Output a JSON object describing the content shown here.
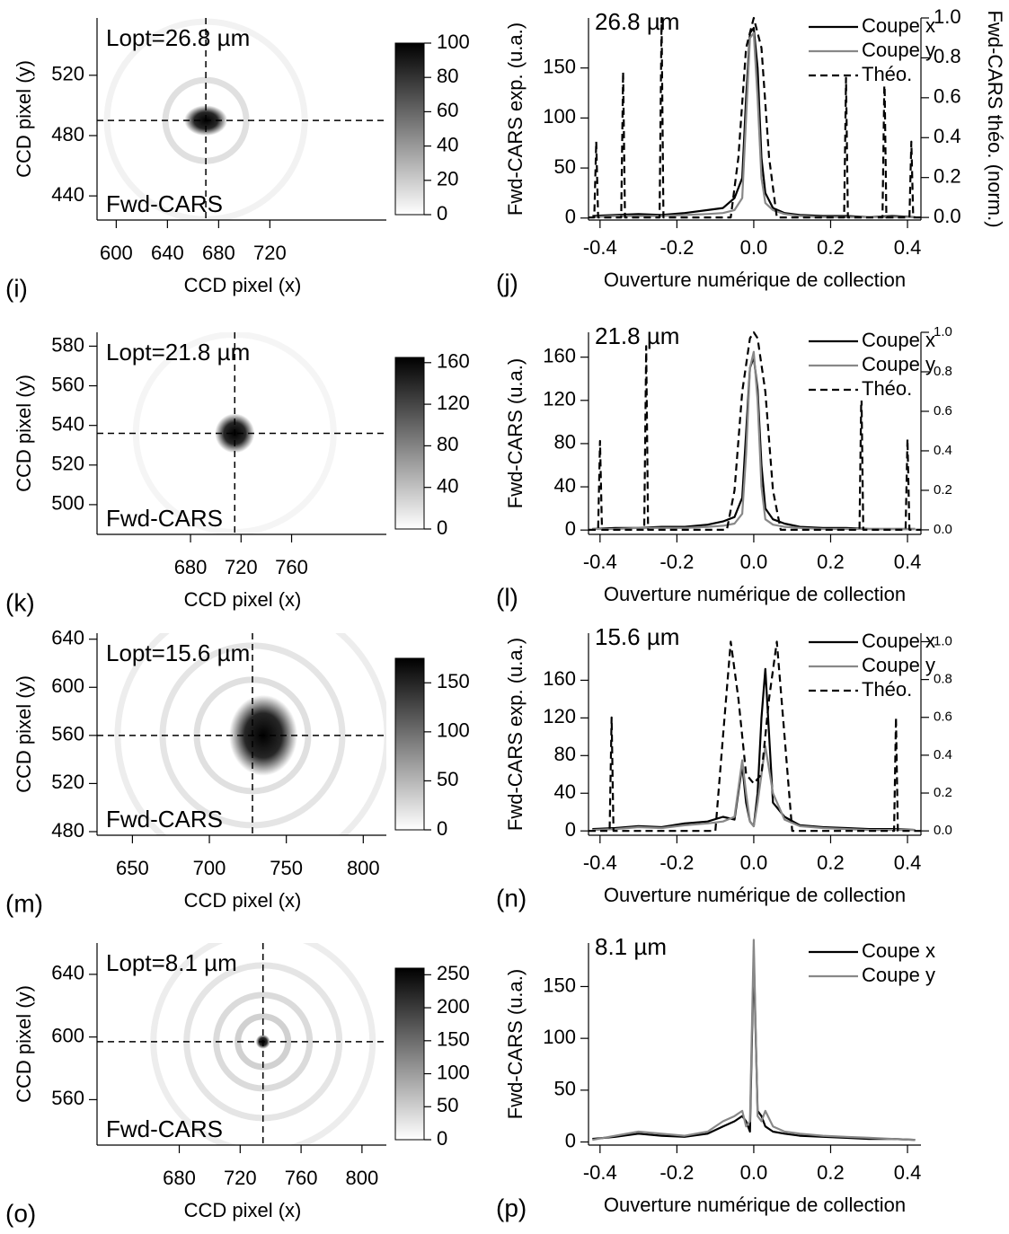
{
  "chart_data": [
    {
      "type": "heatmap",
      "panel": "(i)",
      "annotation": "Lopt=26.8 µm",
      "label": "Fwd-CARS",
      "xlabel": "CCD pixel (x)",
      "ylabel": "CCD pixel (y)",
      "xlim": [
        585,
        811
      ],
      "ylim": [
        424,
        558
      ],
      "xticks": [
        600,
        640,
        680,
        720
      ],
      "yticks": [
        440,
        480,
        520
      ],
      "crosshair": {
        "x": 670,
        "y": 490
      },
      "colorbar": {
        "lim": [
          0,
          100
        ],
        "ticks": [
          0,
          20,
          40,
          60,
          80,
          100
        ]
      }
    },
    {
      "type": "line",
      "panel": "(j)",
      "title": "26.8 µm",
      "xlabel": "Ouverture numérique de collection",
      "ylabel": "Fwd-CARS exp. (u.a.)",
      "y2label": "Fwd-CARS théo. (norm.)",
      "xlim": [
        -0.43,
        0.435
      ],
      "ylim": [
        -2,
        200
      ],
      "y2lim": [
        -0.013,
        1.0
      ],
      "xticks": [
        -0.4,
        -0.2,
        {
          "value": 0,
          "label": "0.0"
        },
        0.2,
        0.4
      ],
      "yticks": [
        0,
        50,
        100,
        150
      ],
      "y2ticks": [
        {
          "value": 0,
          "label": "0.0"
        },
        0.2,
        0.4,
        0.6,
        0.8,
        {
          "value": 1,
          "label": "1.0"
        }
      ],
      "series": [
        {
          "name": "Coupe x",
          "color": "#000000",
          "x": [
            -0.42,
            -0.36,
            -0.3,
            -0.24,
            -0.18,
            -0.12,
            -0.08,
            -0.05,
            -0.03,
            -0.02,
            -0.01,
            0,
            0.01,
            0.02,
            0.03,
            0.05,
            0.08,
            0.12,
            0.18,
            0.24,
            0.3,
            0.36,
            0.42
          ],
          "values": [
            2,
            3,
            4,
            3,
            5,
            8,
            10,
            20,
            40,
            120,
            185,
            190,
            150,
            60,
            25,
            10,
            5,
            3,
            2,
            2,
            1,
            2,
            1
          ]
        },
        {
          "name": "Coupe y",
          "color": "#888888",
          "x": [
            -0.42,
            -0.36,
            -0.3,
            -0.24,
            -0.18,
            -0.12,
            -0.08,
            -0.05,
            -0.03,
            -0.02,
            -0.01,
            0,
            0.01,
            0.02,
            0.03,
            0.05,
            0.08,
            0.12,
            0.18,
            0.24,
            0.3,
            0.36,
            0.42
          ],
          "values": [
            1,
            2,
            2,
            2,
            3,
            4,
            5,
            8,
            20,
            100,
            180,
            185,
            120,
            40,
            15,
            8,
            4,
            2,
            1,
            1,
            1,
            1,
            1
          ]
        },
        {
          "name": "Théo.",
          "color": "#000000",
          "dashed": true,
          "axis": "y2",
          "x": [
            -0.43,
            -0.415,
            -0.41,
            -0.405,
            -0.345,
            -0.34,
            -0.335,
            -0.245,
            -0.24,
            -0.235,
            -0.06,
            -0.04,
            -0.02,
            0,
            0.02,
            0.04,
            0.06,
            0.235,
            0.24,
            0.245,
            0.335,
            0.34,
            0.345,
            0.405,
            0.41,
            0.415,
            0.435
          ],
          "values": [
            0,
            0,
            0.38,
            0,
            0,
            0.73,
            0,
            0,
            1.0,
            0,
            0,
            0.3,
            0.85,
            1.0,
            0.85,
            0.3,
            0,
            0,
            0.7,
            0,
            0,
            0.72,
            0,
            0,
            0.38,
            0,
            0
          ]
        }
      ]
    },
    {
      "type": "heatmap",
      "panel": "(k)",
      "annotation": "Lopt=21.8 µm",
      "label": "Fwd-CARS",
      "xlabel": "CCD pixel (x)",
      "ylabel": "CCD pixel (y)",
      "xlim": [
        606,
        835
      ],
      "ylim": [
        485,
        587
      ],
      "xticks": [
        680,
        720,
        760
      ],
      "yticks": [
        500,
        520,
        540,
        560,
        580
      ],
      "crosshair": {
        "x": 715,
        "y": 536
      },
      "colorbar": {
        "lim": [
          0,
          165
        ],
        "ticks": [
          0,
          40,
          80,
          120,
          160
        ]
      }
    },
    {
      "type": "line",
      "panel": "(l)",
      "title": "21.8 µm",
      "xlabel": "Ouverture numérique de collection",
      "ylabel": "Fwd-CARS (u.a.)",
      "xlim": [
        -0.43,
        0.435
      ],
      "ylim": [
        -4,
        183
      ],
      "y2lim": [
        -0.023,
        1.0
      ],
      "xticks": [
        -0.4,
        -0.2,
        {
          "value": 0,
          "label": "0.0"
        },
        0.2,
        0.4
      ],
      "yticks": [
        0,
        40,
        80,
        120,
        160
      ],
      "y2ticks": [
        {
          "value": 0,
          "label": "0.0"
        },
        0.2,
        0.4,
        0.6,
        0.8,
        {
          "value": 1,
          "label": "1.0"
        }
      ],
      "series": [
        {
          "name": "Coupe x",
          "color": "#000000",
          "x": [
            -0.42,
            -0.36,
            -0.3,
            -0.24,
            -0.18,
            -0.12,
            -0.08,
            -0.05,
            -0.03,
            -0.02,
            -0.01,
            0,
            0.01,
            0.02,
            0.03,
            0.05,
            0.08,
            0.12,
            0.18,
            0.24,
            0.3,
            0.36,
            0.42
          ],
          "values": [
            1,
            2,
            2,
            3,
            3,
            5,
            8,
            12,
            30,
            90,
            150,
            160,
            130,
            60,
            20,
            10,
            6,
            3,
            2,
            2,
            1,
            1,
            1
          ]
        },
        {
          "name": "Coupe y",
          "color": "#888888",
          "x": [
            -0.42,
            -0.36,
            -0.3,
            -0.24,
            -0.18,
            -0.12,
            -0.08,
            -0.05,
            -0.03,
            -0.02,
            -0.01,
            0,
            0.01,
            0.02,
            0.03,
            0.05,
            0.08,
            0.12,
            0.18,
            0.24,
            0.3,
            0.36,
            0.42
          ],
          "values": [
            1,
            1,
            2,
            2,
            2,
            3,
            4,
            6,
            15,
            70,
            150,
            165,
            120,
            40,
            10,
            5,
            3,
            2,
            1,
            1,
            1,
            1,
            1
          ]
        },
        {
          "name": "Théo.",
          "color": "#000000",
          "dashed": true,
          "axis": "y2",
          "x": [
            -0.43,
            -0.405,
            -0.4,
            -0.395,
            -0.285,
            -0.28,
            -0.275,
            -0.07,
            -0.05,
            -0.03,
            -0.01,
            0,
            0.01,
            0.03,
            0.05,
            0.07,
            0.275,
            0.28,
            0.285,
            0.395,
            0.4,
            0.405,
            0.435
          ],
          "values": [
            0,
            0,
            0.45,
            0,
            0,
            0.93,
            0,
            0,
            0.2,
            0.7,
            0.97,
            1.0,
            0.97,
            0.7,
            0.2,
            0,
            0,
            0.72,
            0,
            0,
            0.46,
            0,
            0
          ]
        }
      ]
    },
    {
      "type": "heatmap",
      "panel": "(m)",
      "annotation": "Lopt=15.6 µm",
      "label": "Fwd-CARS",
      "xlabel": "CCD pixel (x)",
      "ylabel": "CCD pixel (y)",
      "xlim": [
        627,
        815
      ],
      "ylim": [
        477,
        645
      ],
      "xticks": [
        650,
        700,
        750,
        800
      ],
      "yticks": [
        480,
        520,
        560,
        600,
        640
      ],
      "crosshair": {
        "x": 728,
        "y": 560
      },
      "colorbar": {
        "lim": [
          0,
          175
        ],
        "ticks": [
          0,
          50,
          100,
          150
        ]
      }
    },
    {
      "type": "line",
      "panel": "(n)",
      "title": "15.6 µm",
      "xlabel": "Ouverture numérique de collection",
      "ylabel": "Fwd-CARS exp. (u.a.)",
      "xlim": [
        -0.43,
        0.435
      ],
      "ylim": [
        -4.6,
        210
      ],
      "y2lim": [
        -0.023,
        1.045
      ],
      "xticks": [
        -0.4,
        -0.2,
        {
          "value": 0,
          "label": "0.0"
        },
        0.2,
        0.4
      ],
      "yticks": [
        0,
        40,
        80,
        120,
        160
      ],
      "y2ticks": [
        {
          "value": 0,
          "label": "0.0"
        },
        0.2,
        0.4,
        0.6,
        0.8,
        {
          "value": 1,
          "label": "1.0"
        }
      ],
      "series": [
        {
          "name": "Coupe x",
          "color": "#000000",
          "x": [
            -0.42,
            -0.36,
            -0.3,
            -0.24,
            -0.18,
            -0.12,
            -0.08,
            -0.05,
            -0.03,
            -0.02,
            -0.01,
            0,
            0.01,
            0.02,
            0.03,
            0.05,
            0.08,
            0.12,
            0.18,
            0.24,
            0.3,
            0.36,
            0.42
          ],
          "values": [
            2,
            3,
            5,
            4,
            8,
            10,
            15,
            12,
            70,
            30,
            10,
            5,
            40,
            120,
            172,
            30,
            15,
            6,
            4,
            3,
            2,
            2,
            1
          ]
        },
        {
          "name": "Coupe y",
          "color": "#888888",
          "x": [
            -0.42,
            -0.36,
            -0.3,
            -0.24,
            -0.18,
            -0.12,
            -0.08,
            -0.05,
            -0.03,
            -0.02,
            -0.01,
            0,
            0.01,
            0.02,
            0.03,
            0.05,
            0.08,
            0.12,
            0.18,
            0.24,
            0.3,
            0.36,
            0.42
          ],
          "values": [
            1,
            2,
            4,
            3,
            6,
            8,
            10,
            15,
            75,
            40,
            10,
            5,
            30,
            60,
            90,
            40,
            12,
            5,
            3,
            2,
            1,
            1,
            1
          ]
        },
        {
          "name": "Théo.",
          "color": "#000000",
          "dashed": true,
          "axis": "y2",
          "x": [
            -0.43,
            -0.375,
            -0.37,
            -0.365,
            -0.1,
            -0.08,
            -0.06,
            -0.04,
            -0.02,
            0,
            0.02,
            0.04,
            0.06,
            0.08,
            0.1,
            0.365,
            0.37,
            0.375,
            0.435
          ],
          "values": [
            0,
            0,
            0.6,
            0,
            0,
            0.5,
            1.0,
            0.7,
            0.3,
            0.25,
            0.3,
            0.7,
            1.0,
            0.5,
            0,
            0,
            0.6,
            0,
            0
          ]
        }
      ]
    },
    {
      "type": "heatmap",
      "panel": "(o)",
      "annotation": "Lopt=8.1 µm",
      "label": "Fwd-CARS",
      "xlabel": "CCD pixel (x)",
      "ylabel": "CCD pixel (y)",
      "xlim": [
        626,
        816
      ],
      "ylim": [
        531,
        660
      ],
      "xticks": [
        680,
        720,
        760,
        800
      ],
      "yticks": [
        560,
        600,
        640
      ],
      "crosshair": {
        "x": 735,
        "y": 597
      },
      "colorbar": {
        "lim": [
          0,
          260
        ],
        "ticks": [
          0,
          50,
          100,
          150,
          200,
          250
        ]
      }
    },
    {
      "type": "line",
      "panel": "(p)",
      "title": "8.1 µm",
      "xlabel": "Ouverture numérique de collection",
      "ylabel": "Fwd-CARS (u.a.)",
      "xlim": [
        -0.43,
        0.435
      ],
      "ylim": [
        -3,
        192
      ],
      "xticks": [
        -0.4,
        -0.2,
        {
          "value": 0,
          "label": "0.0"
        },
        0.2,
        0.4
      ],
      "yticks": [
        0,
        50,
        100,
        150
      ],
      "series": [
        {
          "name": "Coupe x",
          "color": "#000000",
          "x": [
            -0.42,
            -0.36,
            -0.3,
            -0.24,
            -0.18,
            -0.12,
            -0.08,
            -0.05,
            -0.03,
            -0.02,
            -0.01,
            0,
            0.01,
            0.02,
            0.03,
            0.05,
            0.08,
            0.12,
            0.18,
            0.24,
            0.3,
            0.36,
            0.42
          ],
          "values": [
            3,
            5,
            8,
            6,
            5,
            8,
            15,
            20,
            25,
            20,
            10,
            180,
            30,
            25,
            15,
            10,
            8,
            6,
            5,
            4,
            3,
            3,
            2
          ]
        },
        {
          "name": "Coupe y",
          "color": "#888888",
          "x": [
            -0.42,
            -0.36,
            -0.3,
            -0.24,
            -0.18,
            -0.12,
            -0.08,
            -0.05,
            -0.03,
            -0.02,
            -0.01,
            0,
            0.01,
            0.02,
            0.03,
            0.05,
            0.08,
            0.12,
            0.18,
            0.24,
            0.3,
            0.36,
            0.42
          ],
          "values": [
            2,
            6,
            10,
            8,
            6,
            10,
            20,
            25,
            30,
            15,
            20,
            195,
            25,
            20,
            30,
            15,
            10,
            8,
            6,
            5,
            4,
            3,
            2
          ]
        }
      ]
    }
  ]
}
